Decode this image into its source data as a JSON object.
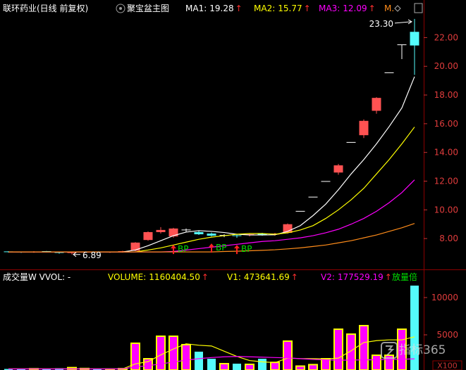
{
  "header": {
    "security": "联环药业(日线 前复权)",
    "watermark": "指标365"
  },
  "chart_data": [
    {
      "type": "candlestick",
      "title": "聚宝盆主图",
      "open": [
        7.08,
        7.06,
        7.05,
        7.1,
        7.06,
        7.0,
        7.02,
        7.05,
        7.04,
        7.06,
        7.15,
        7.9,
        8.45,
        8.15,
        8.6,
        8.45,
        8.35,
        8.22,
        8.2,
        8.25,
        8.35,
        8.28,
        8.4,
        9.9,
        10.89,
        11.98,
        12.6,
        14.7,
        15.2,
        16.9,
        19.55,
        21.5,
        22.4
      ],
      "high": [
        7.12,
        7.1,
        7.12,
        7.14,
        7.09,
        7.05,
        7.08,
        7.1,
        7.08,
        7.15,
        7.75,
        8.5,
        8.8,
        8.75,
        8.7,
        8.55,
        8.42,
        8.3,
        8.28,
        8.35,
        8.4,
        8.4,
        9.05,
        9.9,
        10.89,
        11.98,
        13.2,
        14.7,
        16.3,
        17.85,
        19.55,
        21.5,
        23.3
      ],
      "low": [
        7.02,
        7.0,
        7.01,
        7.03,
        6.95,
        6.89,
        6.98,
        7.0,
        7.0,
        7.02,
        7.12,
        7.85,
        8.35,
        8.05,
        8.45,
        8.25,
        8.15,
        8.1,
        8.05,
        8.15,
        8.2,
        8.2,
        8.35,
        9.9,
        10.89,
        11.98,
        12.45,
        14.7,
        15.0,
        16.7,
        19.55,
        20.5,
        19.4
      ],
      "close": [
        7.06,
        7.05,
        7.1,
        7.06,
        7.0,
        7.02,
        7.05,
        7.04,
        7.06,
        7.12,
        7.72,
        8.45,
        8.6,
        8.7,
        8.6,
        8.3,
        8.2,
        8.22,
        8.18,
        8.28,
        8.25,
        8.35,
        9.0,
        9.9,
        10.89,
        11.98,
        13.1,
        14.7,
        16.2,
        17.8,
        19.55,
        21.5,
        21.45
      ],
      "up_color": "#ff5252",
      "down_color": "#54fcfc",
      "flat_color": "#ffffff",
      "ylim": [
        5.9,
        23.54
      ],
      "yticks": [
        {
          "value": 8,
          "label": "8.00"
        },
        {
          "value": 10,
          "label": "10.00"
        },
        {
          "value": 12,
          "label": "12.00"
        },
        {
          "value": 14,
          "label": "14.00"
        },
        {
          "value": 16,
          "label": "16.00"
        },
        {
          "value": 18,
          "label": "18.00"
        },
        {
          "value": 20,
          "label": "20.00"
        },
        {
          "value": 22,
          "label": "22.00"
        }
      ],
      "series": [
        {
          "name": "MA1:",
          "value_label": "19.28",
          "arrow": "↑",
          "color": "#ffffff",
          "values": [
            7.07,
            7.07,
            7.07,
            7.07,
            7.07,
            7.07,
            7.07,
            7.07,
            7.07,
            7.07,
            7.2,
            7.5,
            7.85,
            8.2,
            8.45,
            8.55,
            8.5,
            8.42,
            8.3,
            8.25,
            8.25,
            8.26,
            8.5,
            8.9,
            9.6,
            10.4,
            11.4,
            12.5,
            13.5,
            14.6,
            15.8,
            17.1,
            19.28
          ]
        },
        {
          "name": "MA2:",
          "value_label": "15.77",
          "arrow": "↑",
          "color": "#ffff00",
          "values": [
            7.07,
            7.07,
            7.07,
            7.07,
            7.07,
            7.07,
            7.07,
            7.07,
            7.07,
            7.07,
            7.07,
            7.2,
            7.35,
            7.55,
            7.75,
            7.95,
            8.1,
            8.2,
            8.3,
            8.35,
            8.35,
            8.3,
            8.4,
            8.6,
            8.9,
            9.4,
            10.0,
            10.7,
            11.5,
            12.5,
            13.5,
            14.6,
            15.77
          ]
        },
        {
          "name": "MA3:",
          "value_label": "12.09",
          "arrow": "↑",
          "color": "#ff00ff",
          "values": [
            7.07,
            7.07,
            7.07,
            7.07,
            7.07,
            7.07,
            7.07,
            7.07,
            7.07,
            7.07,
            7.07,
            7.07,
            7.07,
            7.1,
            7.2,
            7.3,
            7.4,
            7.5,
            7.6,
            7.7,
            7.8,
            7.85,
            7.95,
            8.05,
            8.2,
            8.4,
            8.65,
            9.0,
            9.4,
            9.9,
            10.5,
            11.2,
            12.09
          ]
        },
        {
          "name": "M.",
          "color": "#ff8c1a",
          "values": [
            7.07,
            7.07,
            7.07,
            7.07,
            7.07,
            7.07,
            7.07,
            7.07,
            7.07,
            7.07,
            7.07,
            7.07,
            7.07,
            7.07,
            7.07,
            7.07,
            7.07,
            7.1,
            7.12,
            7.15,
            7.18,
            7.22,
            7.28,
            7.35,
            7.45,
            7.55,
            7.7,
            7.85,
            8.05,
            8.25,
            8.5,
            8.75,
            9.05
          ]
        }
      ],
      "signals": [
        null,
        null,
        null,
        null,
        null,
        null,
        null,
        null,
        null,
        null,
        null,
        null,
        null,
        "BP",
        null,
        null,
        "BP",
        null,
        "BP",
        null,
        null,
        null,
        null,
        null,
        null,
        null,
        null,
        null,
        null,
        null,
        null,
        null,
        null
      ],
      "annotations": {
        "high": "23.30",
        "low": "6.89"
      }
    },
    {
      "type": "bar",
      "title": "成交量W VVOL: -",
      "indicator_label": "放量倍",
      "unit": "X100",
      "ylim": [
        280,
        11700
      ],
      "yticks": [
        5000,
        10000
      ],
      "series": [
        {
          "name": "VOLUME:",
          "value_label": "1160404.50",
          "arrow": "↑",
          "type": "bar",
          "color": "#ff00ff",
          "stroke": "#ffff00",
          "down_color": "#54fcfc",
          "legend_color": "#ffff00",
          "values": [
            420,
            380,
            450,
            400,
            520,
            600,
            480,
            420,
            390,
            460,
            3870,
            1790,
            4810,
            4810,
            3680,
            2740,
            1790,
            1130,
            1130,
            1040,
            1790,
            1300,
            4150,
            800,
            1000,
            1790,
            5750,
            5090,
            6230,
            2260,
            2260,
            5750,
            11604.045
          ]
        },
        {
          "name": "V1:",
          "value_label": "473641.69",
          "arrow": "↑",
          "type": "line",
          "color": "#ffff00",
          "values": [
            430,
            430,
            430,
            430,
            430,
            430,
            430,
            430,
            430,
            430,
            1100,
            1400,
            2300,
            3100,
            3800,
            3600,
            3500,
            2800,
            2100,
            1550,
            1380,
            1270,
            1880,
            1810,
            1810,
            1770,
            1870,
            2850,
            3970,
            4220,
            4320,
            4320,
            4736.4169
          ]
        },
        {
          "name": "V2:",
          "value_label": "177529.19",
          "arrow": "↑",
          "type": "line",
          "color": "#ff00ff",
          "values": [
            420,
            420,
            420,
            420,
            420,
            420,
            420,
            420,
            420,
            420,
            700,
            850,
            1100,
            1350,
            1600,
            1800,
            1950,
            2050,
            2100,
            2050,
            2000,
            1950,
            1900,
            1800,
            1700,
            1650,
            1600,
            1600,
            1650,
            1650,
            1700,
            1720,
            1775.2919
          ]
        }
      ]
    }
  ]
}
